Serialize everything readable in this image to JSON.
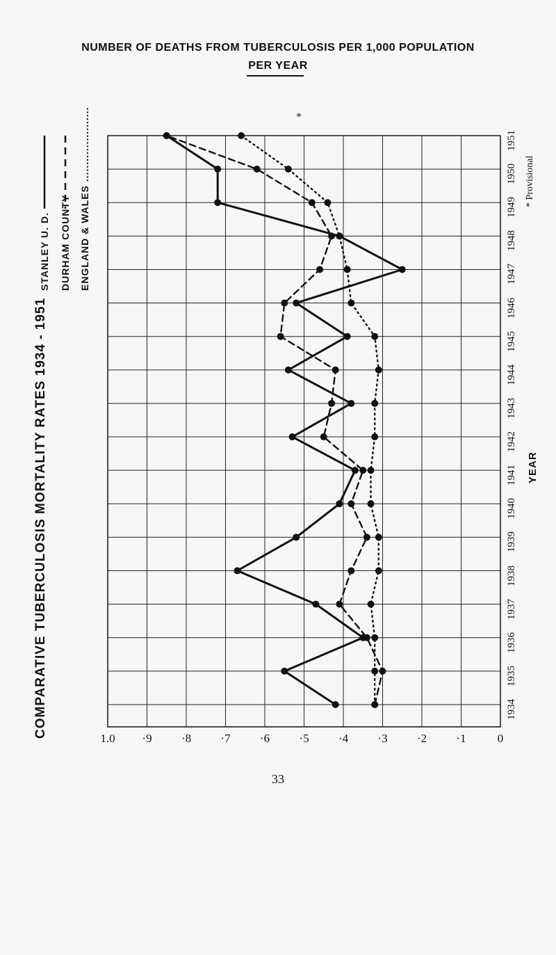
{
  "title_line1": "NUMBER OF DEATHS FROM TUBERCULOSIS PER 1,000 POPULATION",
  "title_line2": "PER YEAR",
  "vertical_title": "COMPARATIVE TUBERCULOSIS MORTALITY RATES 1934 - 1951",
  "legend": {
    "stanley": "STANLEY U. D.",
    "durham": "DURHAM COUNTY",
    "england": "ENGLAND & WALES ......................"
  },
  "axis_label": "YEAR",
  "provisional_note": "* Provisional",
  "provisional_marker": "*",
  "page_number": "33",
  "value_ticks": [
    "1.0",
    "·9",
    "·8",
    "·7",
    "·6",
    "·5",
    "·4",
    "·3",
    "·2",
    "·1",
    "0"
  ],
  "chart_data": {
    "type": "line",
    "x": [
      "1934",
      "1935",
      "1936",
      "1937",
      "1938",
      "1939",
      "1940",
      "1941",
      "1942",
      "1943",
      "1944",
      "1945",
      "1946",
      "1947",
      "1948",
      "1949",
      "1950",
      "1951"
    ],
    "ylim": [
      0,
      1.0
    ],
    "grid": true,
    "series": [
      {
        "name": "STANLEY U. D.",
        "style": "solid",
        "values": [
          0.42,
          0.55,
          0.35,
          0.47,
          0.67,
          0.52,
          0.41,
          0.37,
          0.53,
          0.38,
          0.54,
          0.39,
          0.52,
          0.25,
          0.41,
          0.72,
          0.72,
          0.85
        ]
      },
      {
        "name": "DURHAM COUNTY",
        "style": "dashed",
        "values": [
          0.32,
          0.3,
          0.34,
          0.41,
          0.38,
          0.34,
          0.38,
          0.35,
          0.45,
          0.43,
          0.42,
          0.56,
          0.55,
          0.46,
          0.43,
          0.48,
          0.62,
          0.85
        ]
      },
      {
        "name": "ENGLAND & WALES",
        "style": "dotted",
        "values": [
          0.32,
          0.32,
          0.32,
          0.33,
          0.31,
          0.31,
          0.33,
          0.33,
          0.32,
          0.32,
          0.31,
          0.32,
          0.38,
          0.39,
          0.41,
          0.44,
          0.54,
          0.66
        ]
      }
    ]
  }
}
